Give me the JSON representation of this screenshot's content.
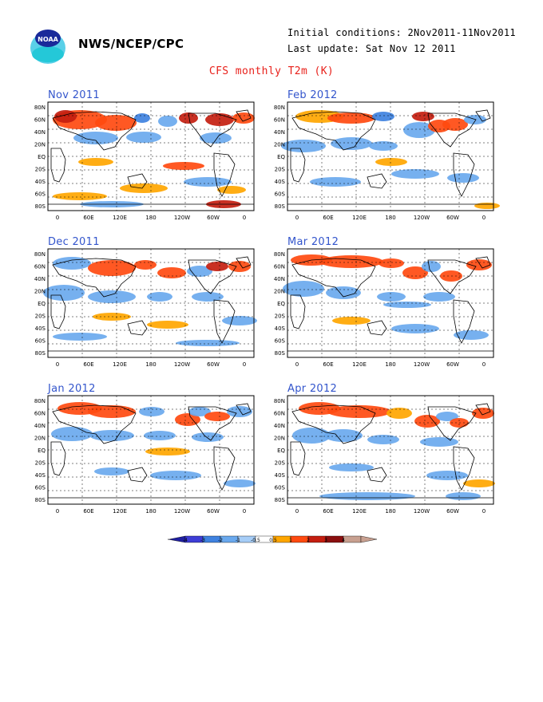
{
  "header": {
    "org": "NWS/NCEP/CPC",
    "initial_conditions": "Initial conditions: 2Nov2011-11Nov2011",
    "last_update": "Last update: Sat Nov 12 2011",
    "logo_text": "NOAA"
  },
  "main_title": "CFS monthly T2m (K)",
  "axes": {
    "lat_ticks": [
      "80N",
      "60N",
      "40N",
      "20N",
      "EQ",
      "20S",
      "40S",
      "60S",
      "80S"
    ],
    "lon_ticks": [
      "0",
      "60E",
      "120E",
      "180",
      "120W",
      "60W",
      "0"
    ]
  },
  "panels": [
    {
      "title": "Nov 2011"
    },
    {
      "title": "Feb 2012"
    },
    {
      "title": "Dec 2011"
    },
    {
      "title": "Mar 2012"
    },
    {
      "title": "Jan 2012"
    },
    {
      "title": "Apr 2012"
    }
  ],
  "legend": {
    "labels": [
      "-4",
      "-3",
      "-2",
      "-1",
      "-0.5",
      "0.5",
      "1",
      "2",
      "3",
      "4"
    ],
    "colors": [
      "#1f1fa0",
      "#3d3dd6",
      "#3f82e0",
      "#6aa9ee",
      "#a6cdf7",
      "#ffffff",
      "#ffa600",
      "#ff4a10",
      "#c41e10",
      "#8a0f0f",
      "#c8a090",
      "#c8a090"
    ]
  },
  "colors": {
    "title_red": "#e8201a",
    "panel_title_blue": "#3355cc",
    "map_frame": "#000000"
  }
}
